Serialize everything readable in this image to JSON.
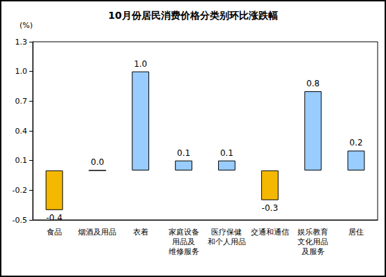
{
  "chart_data": {
    "type": "bar",
    "title": "10月份居民消费价格分类别环比涨跌幅",
    "ylabel": "(%)",
    "categories": [
      "食品",
      "烟酒及用品",
      "衣着",
      "家庭设备\n用品及\n维修服务",
      "医疗保健\n和个人用品",
      "交通和通信",
      "娱乐教育\n文化用品\n及服务",
      "居住"
    ],
    "values": [
      -0.4,
      0,
      1,
      0.1,
      0.1,
      -0.3,
      0.8,
      0.2
    ],
    "value_labels": [
      "-0.4",
      "0.0",
      "1.0",
      "0.1",
      "0.1",
      "-0.3",
      "0.8",
      "0.2"
    ],
    "colors": [
      "#F5B800",
      "#99CCFF",
      "#99CCFF",
      "#99CCFF",
      "#99CCFF",
      "#F5B800",
      "#99CCFF",
      "#99CCFF"
    ],
    "ylim": [
      -0.5,
      1.3
    ],
    "yticks": [
      -0.5,
      -0.2,
      0.1,
      0.4,
      0.7,
      {
        "value": 1,
        "label": "1.0"
      },
      1.3
    ],
    "grid": false,
    "data_labels": true
  }
}
